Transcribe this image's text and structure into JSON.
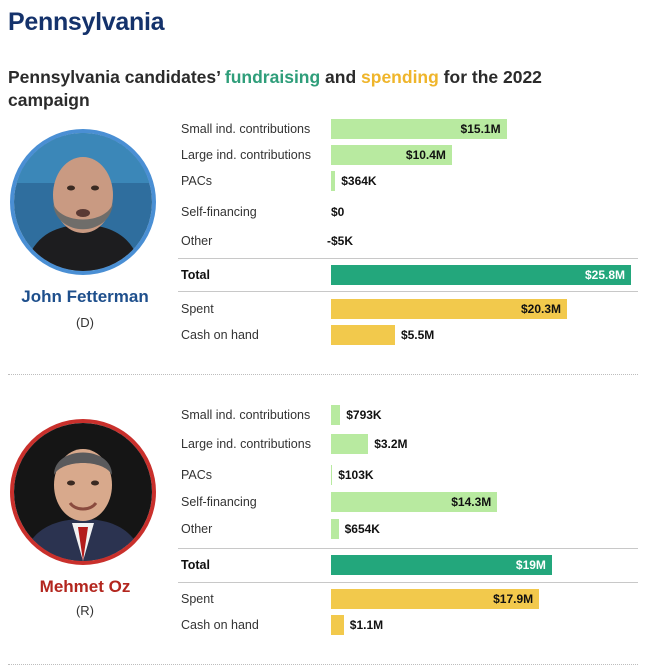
{
  "page": {
    "state_title": "Pennsylvania",
    "subtitle_pre": "Pennsylvania candidates’ ",
    "subtitle_fund": "fundraising",
    "subtitle_and": " and ",
    "subtitle_spend": "spending",
    "subtitle_post": " for the 2022 campaign"
  },
  "colors": {
    "contribution": "#b8eaa0",
    "total": "#23a77c",
    "spent": "#f2c94c",
    "dem_ring": "#4a8fd4",
    "rep_ring": "#c9302c",
    "dem_name": "#1e4f8c",
    "rep_name": "#b3261e"
  },
  "chart_data": {
    "type": "bar",
    "unit": "USD millions",
    "candidates": [
      {
        "name": "John Fetterman",
        "party": "(D)",
        "rows": [
          {
            "label": "Small ind. contributions",
            "value": 15.1,
            "display": "$15.1M",
            "kind": "contribution"
          },
          {
            "label": "Large ind. contributions",
            "value": 10.4,
            "display": "$10.4M",
            "kind": "contribution"
          },
          {
            "label": "PACs",
            "value": 0.364,
            "display": "$364K",
            "kind": "contribution"
          },
          {
            "label": "Self-financing",
            "value": 0,
            "display": "$0",
            "kind": "contribution"
          },
          {
            "label": "Other",
            "value": -0.005,
            "display": "-$5K",
            "kind": "contribution"
          },
          {
            "label": "Total",
            "value": 25.8,
            "display": "$25.8M",
            "kind": "total"
          },
          {
            "label": "Spent",
            "value": 20.3,
            "display": "$20.3M",
            "kind": "spent"
          },
          {
            "label": "Cash on hand",
            "value": 5.5,
            "display": "$5.5M",
            "kind": "spent"
          }
        ]
      },
      {
        "name": "Mehmet Oz",
        "party": "(R)",
        "rows": [
          {
            "label": "Small ind. contributions",
            "value": 0.793,
            "display": "$793K",
            "kind": "contribution"
          },
          {
            "label": "Large ind. contributions",
            "value": 3.2,
            "display": "$3.2M",
            "kind": "contribution"
          },
          {
            "label": "PACs",
            "value": 0.103,
            "display": "$103K",
            "kind": "contribution"
          },
          {
            "label": "Self-financing",
            "value": 14.3,
            "display": "$14.3M",
            "kind": "contribution"
          },
          {
            "label": "Other",
            "value": 0.654,
            "display": "$654K",
            "kind": "contribution"
          },
          {
            "label": "Total",
            "value": 19.0,
            "display": "$19M",
            "kind": "total"
          },
          {
            "label": "Spent",
            "value": 17.9,
            "display": "$17.9M",
            "kind": "spent"
          },
          {
            "label": "Cash on hand",
            "value": 1.1,
            "display": "$1.1M",
            "kind": "spent"
          }
        ]
      }
    ]
  }
}
